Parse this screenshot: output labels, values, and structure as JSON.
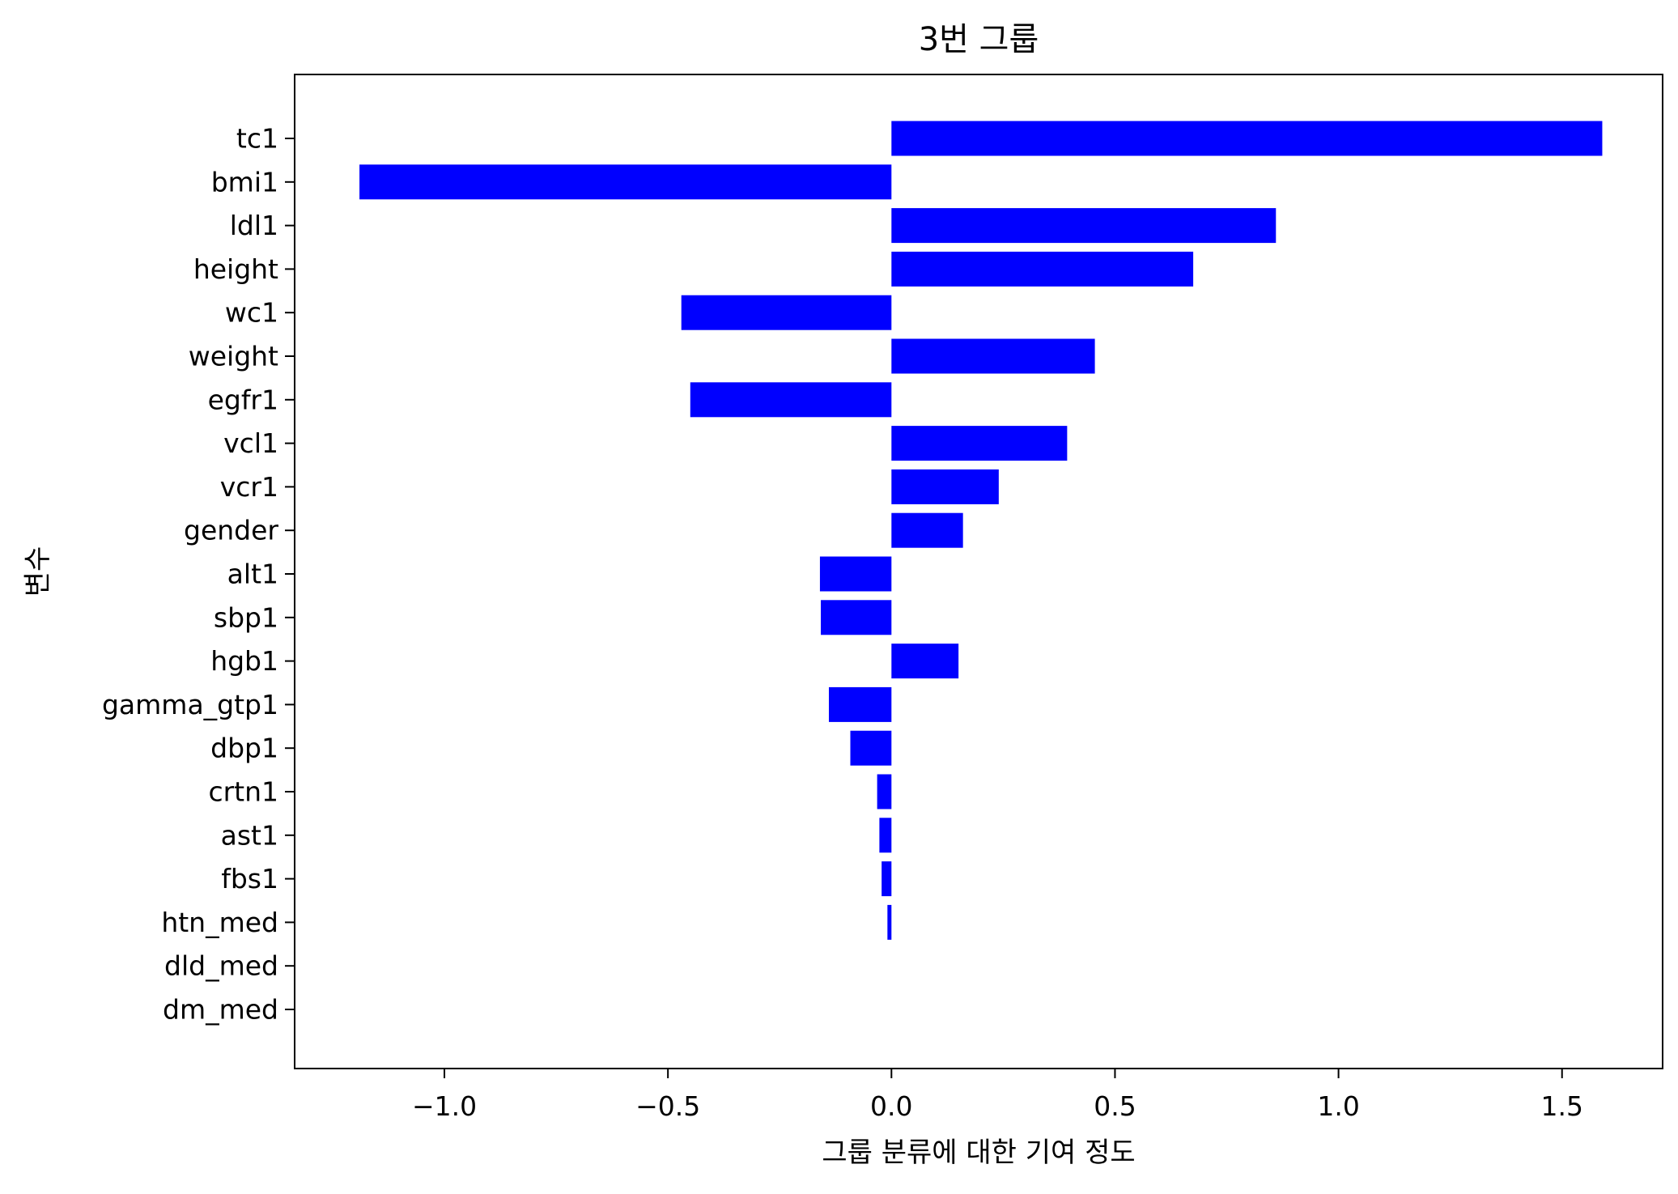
{
  "chart_data": {
    "type": "bar",
    "orientation": "horizontal",
    "title": "3번 그룹",
    "xlabel": "그룹 분류에 대한 기여 정도",
    "ylabel": "변수",
    "xlim": [
      -1.335,
      1.725
    ],
    "xticks": [
      -1.0,
      -0.5,
      0.0,
      0.5,
      1.0,
      1.5
    ],
    "xtick_labels": [
      "−1.0",
      "−0.5",
      "0.0",
      "0.5",
      "1.0",
      "1.5"
    ],
    "grid": false,
    "bar_color": "#0000ff",
    "categories": [
      "tc1",
      "bmi1",
      "ldl1",
      "height",
      "wc1",
      "weight",
      "egfr1",
      "vcl1",
      "vcr1",
      "gender",
      "alt1",
      "sbp1",
      "hgb1",
      "gamma_gtp1",
      "dbp1",
      "crtn1",
      "ast1",
      "fbs1",
      "htn_med",
      "dld_med",
      "dm_med"
    ],
    "values": [
      1.59,
      -1.19,
      0.86,
      0.675,
      -0.47,
      0.455,
      -0.45,
      0.393,
      0.24,
      0.16,
      -0.16,
      -0.158,
      0.15,
      -0.14,
      -0.092,
      -0.032,
      -0.027,
      -0.022,
      -0.009,
      0.0,
      0.0
    ]
  }
}
